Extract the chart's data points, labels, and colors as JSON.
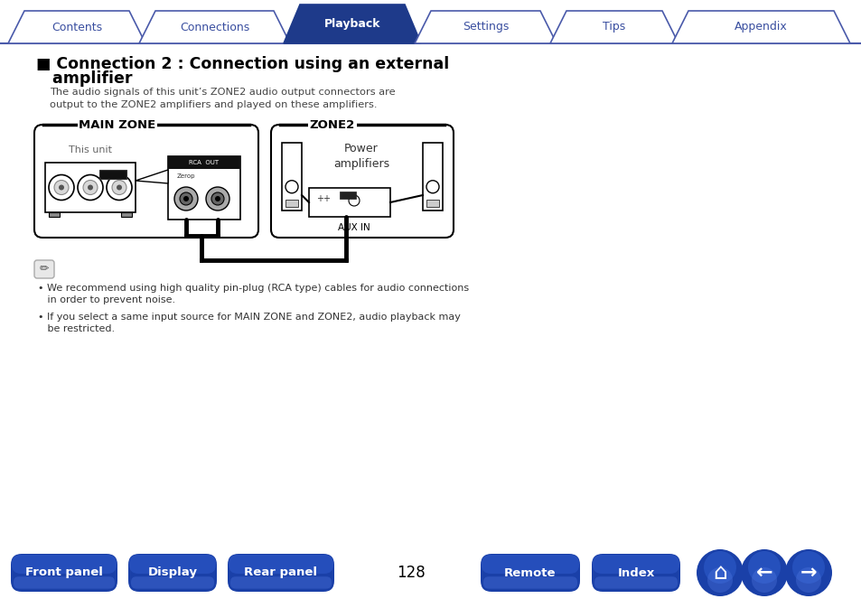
{
  "page_number": "128",
  "tab_labels": [
    "Contents",
    "Connections",
    "Playback",
    "Settings",
    "Tips",
    "Appendix"
  ],
  "active_tab": "Playback",
  "active_tab_color": "#1e3a8a",
  "inactive_tab_color": "#ffffff",
  "inactive_tab_border": "#4a5aaa",
  "tab_text_active": "#ffffff",
  "tab_text_inactive": "#3a4fa0",
  "title_line1": "■ Connection 2 : Connection using an external",
  "title_line2": "   amplifier",
  "description": "The audio signals of this unit’s ZONE2 audio output connectors are\noutput to the ZONE2 amplifiers and played on these amplifiers.",
  "main_zone_label": "MAIN ZONE",
  "zone2_label": "ZONE2",
  "this_unit_label": "This unit",
  "power_amp_label": "Power\namplifiers",
  "aux_in_label": "AUX IN",
  "note1": "• We recommend using high quality pin-plug (RCA type) cables for audio connections",
  "note1b": "   in order to prevent noise.",
  "note2": "• If you select a same input source for MAIN ZONE and ZONE2, audio playback may",
  "note2b": "   be restricted.",
  "bottom_buttons": [
    "Front panel",
    "Display",
    "Rear panel",
    "Remote",
    "Index"
  ],
  "button_color_top": "#2a5abf",
  "button_color_bot": "#1a3a9a",
  "bg_color": "#ffffff",
  "tab_line_color": "#4a5aaa"
}
